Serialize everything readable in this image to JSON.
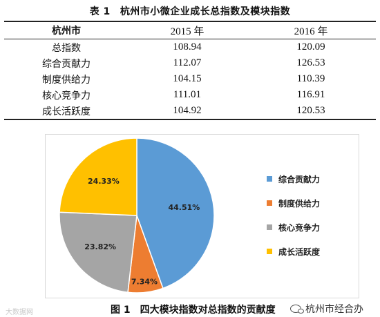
{
  "table": {
    "number": "表 1",
    "title": "杭州市小微企业成长总指数及模块指数",
    "headers": [
      "杭州市",
      "2015 年",
      "2016 年"
    ],
    "rows": [
      [
        "总指数",
        "108.94",
        "120.09"
      ],
      [
        "综合贡献力",
        "112.07",
        "126.53"
      ],
      [
        "制度供给力",
        "104.15",
        "110.39"
      ],
      [
        "核心竞争力",
        "111.01",
        "116.91"
      ],
      [
        "成长活跃度",
        "104.92",
        "120.53"
      ]
    ]
  },
  "figure": {
    "number": "图 1",
    "caption": "四大模块指数对总指数的贡献度"
  },
  "chart_data": {
    "type": "pie",
    "title": "",
    "categories": [
      "综合贡献力",
      "制度供给力",
      "核心竞争力",
      "成长活跃度"
    ],
    "values": [
      44.51,
      7.34,
      23.82,
      24.33
    ],
    "value_labels": [
      "44.51%",
      "7.34%",
      "23.82%",
      "24.33%"
    ],
    "colors": [
      "#5b9bd5",
      "#ed7d31",
      "#a5a5a5",
      "#ffc000"
    ],
    "start_angle_deg": 0,
    "direction": "clockwise",
    "legend": "right"
  },
  "watermarks": {
    "left": "大数据网",
    "right": "杭州市经合办",
    "right_icon": "wechat-icon"
  }
}
